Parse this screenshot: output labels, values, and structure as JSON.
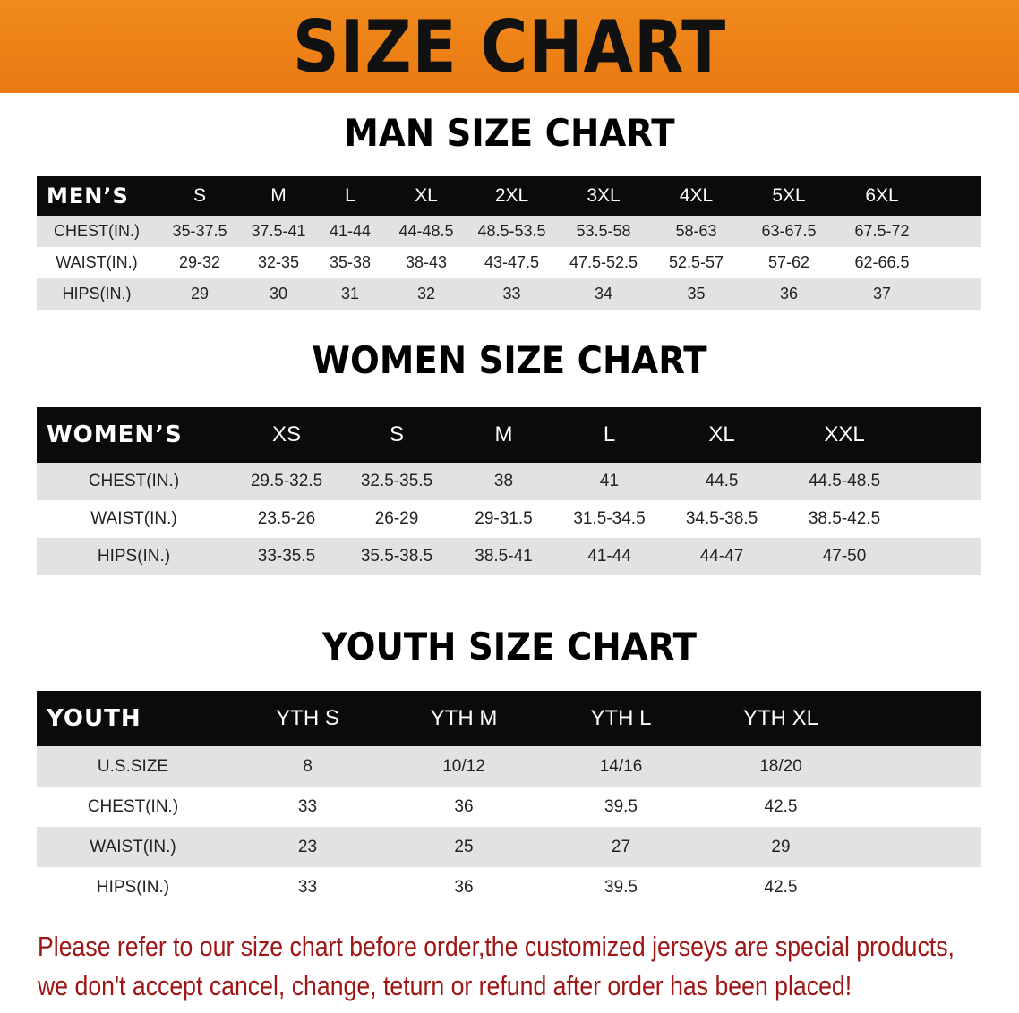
{
  "banner": {
    "title": "SIZE CHART",
    "color": "#ec8218"
  },
  "men": {
    "title": "MAN SIZE CHART",
    "header": [
      "MEN’S",
      "S",
      "M",
      "L",
      "XL",
      "2XL",
      "3XL",
      "4XL",
      "5XL",
      "6XL"
    ],
    "rows": [
      [
        "CHEST(IN.)",
        "35-37.5",
        "37.5-41",
        "41-44",
        "44-48.5",
        "48.5-53.5",
        "53.5-58",
        "58-63",
        "63-67.5",
        "67.5-72"
      ],
      [
        "WAIST(IN.)",
        "29-32",
        "32-35",
        "35-38",
        "38-43",
        "43-47.5",
        "47.5-52.5",
        "52.5-57",
        "57-62",
        "62-66.5"
      ],
      [
        "HIPS(IN.)",
        "29",
        "30",
        "31",
        "32",
        "33",
        "34",
        "35",
        "36",
        "37"
      ]
    ]
  },
  "women": {
    "title": "WOMEN SIZE CHART",
    "header": [
      "WOMEN’S",
      "XS",
      "S",
      "M",
      "L",
      "XL",
      "XXL"
    ],
    "rows": [
      [
        "CHEST(IN.)",
        "29.5-32.5",
        "32.5-35.5",
        "38",
        "41",
        "44.5",
        "44.5-48.5"
      ],
      [
        "WAIST(IN.)",
        "23.5-26",
        "26-29",
        "29-31.5",
        "31.5-34.5",
        "34.5-38.5",
        "38.5-42.5"
      ],
      [
        "HIPS(IN.)",
        "33-35.5",
        "35.5-38.5",
        "38.5-41",
        "41-44",
        "44-47",
        "47-50"
      ]
    ]
  },
  "youth": {
    "title": "YOUTH SIZE CHART",
    "header": [
      "YOUTH",
      "YTH S",
      "YTH M",
      "YTH L",
      "YTH XL"
    ],
    "rows": [
      [
        "U.S.SIZE",
        "8",
        "10/12",
        "14/16",
        "18/20"
      ],
      [
        "CHEST(IN.)",
        "33",
        "36",
        "39.5",
        "42.5"
      ],
      [
        "WAIST(IN.)",
        "23",
        "25",
        "27",
        "29"
      ],
      [
        "HIPS(IN.)",
        "33",
        "36",
        "39.5",
        "42.5"
      ]
    ]
  },
  "note": {
    "line1": "Please refer to our size chart before order,the customized jerseys are special products,",
    "line2": "we don't accept cancel, change, teturn or refund after order has been placed!",
    "color": "#a01515"
  }
}
